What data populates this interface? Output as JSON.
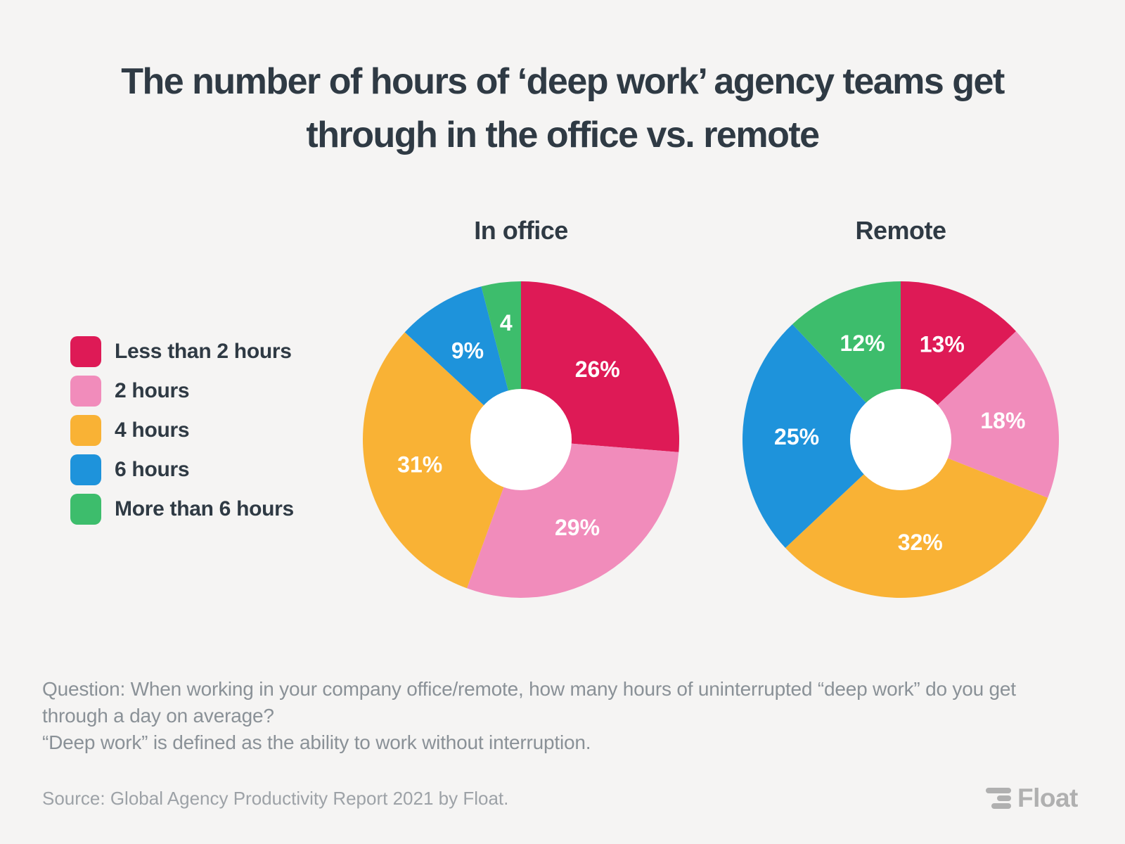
{
  "page": {
    "background": "#F5F4F3",
    "text_dark": "#2F3A44"
  },
  "title": {
    "line1": "The number of hours of ‘deep work’ agency teams get",
    "line2": "through in the office vs. remote"
  },
  "legend": {
    "items": [
      {
        "label": "Less than 2 hours",
        "color": "#DE1A56"
      },
      {
        "label": "2 hours",
        "color": "#F18CBB"
      },
      {
        "label": "4 hours",
        "color": "#F9B235"
      },
      {
        "label": "6 hours",
        "color": "#1E93DB"
      },
      {
        "label": "More than 6 hours",
        "color": "#3DBD6C"
      }
    ]
  },
  "chart_data": [
    {
      "type": "pie",
      "subtype": "donut",
      "title": "In office",
      "labels": [
        "Less than 2 hours",
        "2 hours",
        "4 hours",
        "6 hours",
        "More than 6 hours"
      ],
      "values": [
        26,
        29,
        31,
        9,
        4
      ],
      "value_labels": [
        "26%",
        "29%",
        "31%",
        "9%",
        "4"
      ],
      "colors": [
        "#DE1A56",
        "#F18CBB",
        "#F9B235",
        "#1E93DB",
        "#3DBD6C"
      ],
      "start_angle_deg": 0,
      "direction": "clockwise",
      "hole_color": "#FFFFFF",
      "label_color": "#FFFFFF",
      "legend_position": "left"
    },
    {
      "type": "pie",
      "subtype": "donut",
      "title": "Remote",
      "labels": [
        "Less than 2 hours",
        "2 hours",
        "4 hours",
        "6 hours",
        "More than 6 hours"
      ],
      "values": [
        13,
        18,
        32,
        25,
        12
      ],
      "value_labels": [
        "13%",
        "18%",
        "32%",
        "25%",
        "12%"
      ],
      "colors": [
        "#DE1A56",
        "#F18CBB",
        "#F9B235",
        "#1E93DB",
        "#3DBD6C"
      ],
      "start_angle_deg": 0,
      "direction": "clockwise",
      "hole_color": "#FFFFFF",
      "label_color": "#FFFFFF",
      "legend_position": "left"
    }
  ],
  "footer": {
    "line1": "Question: When working in your company office/remote, how many hours of uninterrupted “deep work” do you get",
    "line2": "through a day on average?",
    "line3": "“Deep work” is defined as the ability to work without interruption."
  },
  "source": {
    "text": "Source: Global Agency Productivity Report 2021 by Float."
  },
  "logo": {
    "wordmark": "Float",
    "icon": "float-bars-icon",
    "color": "#B0B0B0"
  }
}
